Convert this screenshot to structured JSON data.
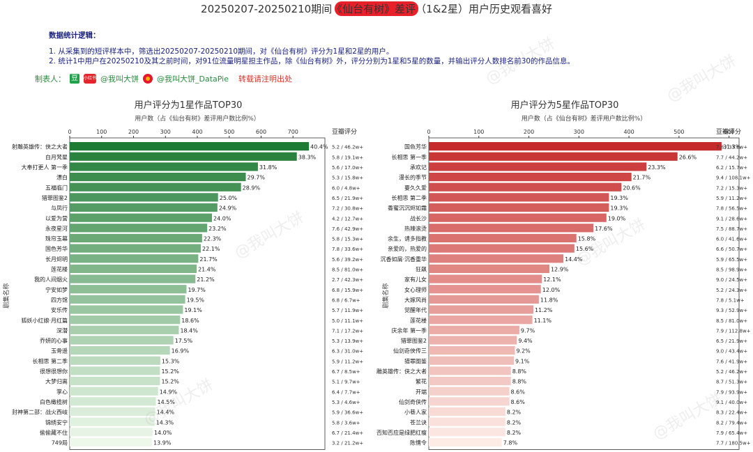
{
  "header": {
    "title": "20250207-20250210期间《仙台有树》差评（1&2星）用户历史观看喜好",
    "logic_heading": "数据统计逻辑：",
    "logic_1": "1. 从采集到的短评样本中，筛选出20250207-20250210期间，对《仙台有树》评分为1星和2星的用户。",
    "logic_2": "2. 统计1中用户在20250210及其之前时间，对91位流量明星担主作品，除《仙台有树》外，评分分别为1星和5星的数量，并输出评分人数排名前30的作品信息。",
    "credit_label": "制表人：",
    "douban_badge": "豆",
    "red_badge": "小红书",
    "credit_1": "@我叫大饼",
    "credit_2": "@我叫大饼_DataPie",
    "repost_note": "转载请注明出处",
    "watermark": "@我叫大饼"
  },
  "chart_data": [
    {
      "type": "bar",
      "orientation": "horizontal",
      "title": "用户评分为1星作品TOP30",
      "xlabel": "用户数（占《仙台有树》差评用户数比例%）",
      "ylabel": "剧集名称",
      "right_column_title": "豆瓣评分",
      "xlim": [
        0,
        800
      ],
      "xticks": [
        0,
        100,
        200,
        300,
        400,
        500,
        600,
        700
      ],
      "color_start": "#1e7b34",
      "color_end": "#edf8ea",
      "categories": [
        "射雕英雄传：侠之大者",
        "白月梵星",
        "大奉打更人 第一季",
        "漂白",
        "五福临门",
        "猎罪图鉴2",
        "与凤行",
        "以爱为营",
        "永夜星河",
        "珠帘玉幕",
        "国色芳华",
        "长月烬明",
        "莲花楼",
        "我的人间烟火",
        "宁安如梦",
        "四方馆",
        "安乐传",
        "狐妖小红娘·月红篇",
        "深潜",
        "乔妍的心事",
        "玉骨遥",
        "长相思 第二季",
        "很想很想你",
        "大梦归离",
        "掌心",
        "白色橄榄树",
        "封神第二部：战火西岐",
        "锦绣安宁",
        "偷偷藏不住",
        "749局"
      ],
      "values": [
        750,
        712,
        590,
        552,
        537,
        465,
        463,
        446,
        431,
        415,
        411,
        403,
        398,
        394,
        366,
        362,
        355,
        346,
        342,
        325,
        314,
        284,
        283,
        283,
        277,
        270,
        268,
        266,
        260,
        258
      ],
      "labels": [
        "40.4%",
        "38.3%",
        "31.8%",
        "29.7%",
        "28.9%",
        "25.0%",
        "24.9%",
        "24.0%",
        "23.2%",
        "22.3%",
        "22.1%",
        "21.7%",
        "21.4%",
        "21.2%",
        "19.7%",
        "19.5%",
        "19.1%",
        "18.6%",
        "18.4%",
        "17.5%",
        "16.9%",
        "15.3%",
        "15.2%",
        "15.2%",
        "14.9%",
        "14.5%",
        "14.4%",
        "14.3%",
        "14.0%",
        "13.9%"
      ],
      "douban": [
        "5.2 / 46.2w+",
        "5.8 / 19.1w+",
        "5.6 / 17.0w+",
        "5.3 / 15.8w+",
        "6.0 / 4.8w+",
        "6.5 / 21.9w+",
        "7.2 / 30.8w+",
        "4.2 / 12.7w+",
        "7.6 / 42.9w+",
        "5.8 / 15.3w+",
        "7.8 / 33.6w+",
        "5.6 / 39.2w+",
        "8.5 / 81.0w+",
        "2.7 / 42.3w+",
        "6.8 / 15.9w+",
        "6.8 / 6.7w+",
        "5.7 / 11.9w+",
        "5.0 / 11.1w+",
        "7.1 / 17.2w+",
        "5.3 / 13.9w+",
        "6.3 / 31.0w+",
        "5.9 / 11.2w+",
        "6.7 / 8.5w+",
        "5.1 / 9.7w+",
        "6.4 / 7.7w+",
        "5.3 / 4.6w+",
        "5.9 / 36.6w+",
        "5.8 / 3.6w+",
        "6.7 / 21.4w+",
        "3.2 / 21.2w+"
      ]
    },
    {
      "type": "bar",
      "orientation": "horizontal",
      "title": "用户评分为5星作品TOP30",
      "xlabel": "用户数（占《仙台有树》差评用户数比例%）",
      "ylabel": "剧集名称",
      "right_column_title": "豆瓣评分",
      "xlim": [
        0,
        620
      ],
      "xticks": [
        0,
        100,
        200,
        300,
        400,
        500,
        600
      ],
      "color_start": "#c62b2b",
      "color_end": "#fdece6",
      "categories": [
        "国色芳华",
        "长相思 第一季",
        "承欢记",
        "漫长的季节",
        "要久久爱",
        "长相思 第二季",
        "香蜜沉沉烬如霜",
        "战长沙",
        "热辣滚烫",
        "余生，请多指教",
        "亲爱的，热爱的",
        "沉香如屑·沉香重华",
        "狂飙",
        "家有儿女",
        "女心理师",
        "大嫁风尚",
        "觉醒年代",
        "莲花楼",
        "庆余年 第一季",
        "猎罪图鉴2",
        "仙剑奇侠传三",
        "猎罪图鉴",
        "射雕英雄传：侠之大者",
        "繁花",
        "开端",
        "仙剑奇侠传",
        "小巷人家",
        "苍兰诀",
        "知否知否应是绿肥红瘦",
        "陈情令"
      ],
      "values": [
        585,
        497,
        435,
        405,
        385,
        360,
        360,
        355,
        329,
        295,
        291,
        269,
        241,
        226,
        224,
        220,
        209,
        207,
        181,
        176,
        172,
        170,
        164,
        164,
        161,
        161,
        153,
        153,
        153,
        146
      ],
      "labels": [
        "31.3%",
        "26.6%",
        "23.3%",
        "21.7%",
        "20.6%",
        "19.3%",
        "19.3%",
        "19.0%",
        "17.6%",
        "15.8%",
        "15.6%",
        "14.4%",
        "12.9%",
        "12.1%",
        "12.0%",
        "11.8%",
        "11.2%",
        "11.1%",
        "9.7%",
        "9.4%",
        "9.2%",
        "9.1%",
        "8.8%",
        "8.8%",
        "8.6%",
        "8.6%",
        "8.2%",
        "8.2%",
        "8.2%",
        "7.8%"
      ],
      "douban": [
        "7.8 / 33.6w+",
        "7.7 / 44.2w+",
        "6.2 / 15.7w+",
        "9.4 / 108.1w+",
        "7.2 / 15.3w+",
        "5.9 / 11.2w+",
        "7.8 / 56.5w+",
        "9.1 / 28.6w+",
        "7.5 / 88.7w+",
        "6.0 / 41.6w+",
        "6.6 / 50.7w+",
        "5.9 / 65.5w+",
        "8.5 / 98.9w+",
        "9.0 / 24.5w+",
        "5.2 / 24.3w+",
        "7.8 / 5.1w+",
        "9.3 / 52.9w+",
        "8.5 / 81.0w+",
        "7.9 / 112.8w+",
        "6.5 / 21.9w+",
        "9.0 / 43.4w+",
        "7.6 / 41.9w+",
        "5.2 / 46.2w+",
        "8.7 / 51.3w+",
        "7.9 / 93.9w+",
        "9.1 / 40.0w+",
        "8.3 / 22.4w+",
        "8.2 / 79.4w+",
        "7.9 / 65.4w+",
        "7.7 / 180.5w+"
      ]
    }
  ]
}
